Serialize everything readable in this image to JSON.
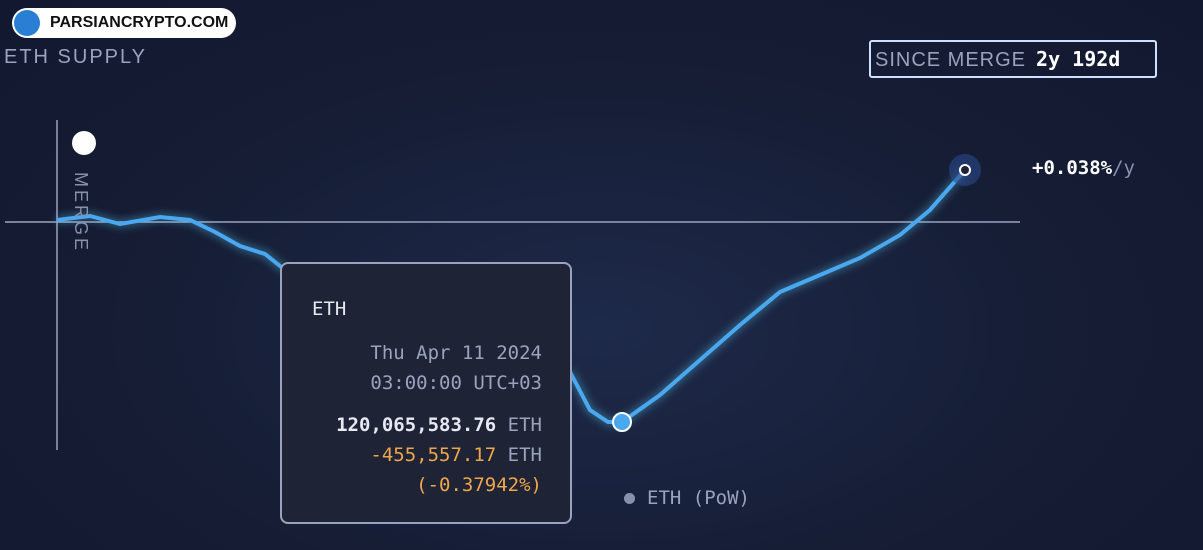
{
  "watermark": "PARSIANCRYPTO.COM",
  "header": {
    "title": "ETH SUPPLY",
    "range_label": "SINCE MERGE",
    "range_value": "2y 192d"
  },
  "chart": {
    "merge_label": "MERGE",
    "end_rate": "+0.038%",
    "end_rate_unit": "/y",
    "legend": "ETH (PoW)"
  },
  "tooltip": {
    "asset": "ETH",
    "date": "Thu Apr 11 2024",
    "time": "03:00:00 UTC+03",
    "supply": "120,065,583.76",
    "supply_unit": "ETH",
    "change": "-455,557.17",
    "change_unit": "ETH",
    "change_pct": "(-0.37942%)"
  }
}
